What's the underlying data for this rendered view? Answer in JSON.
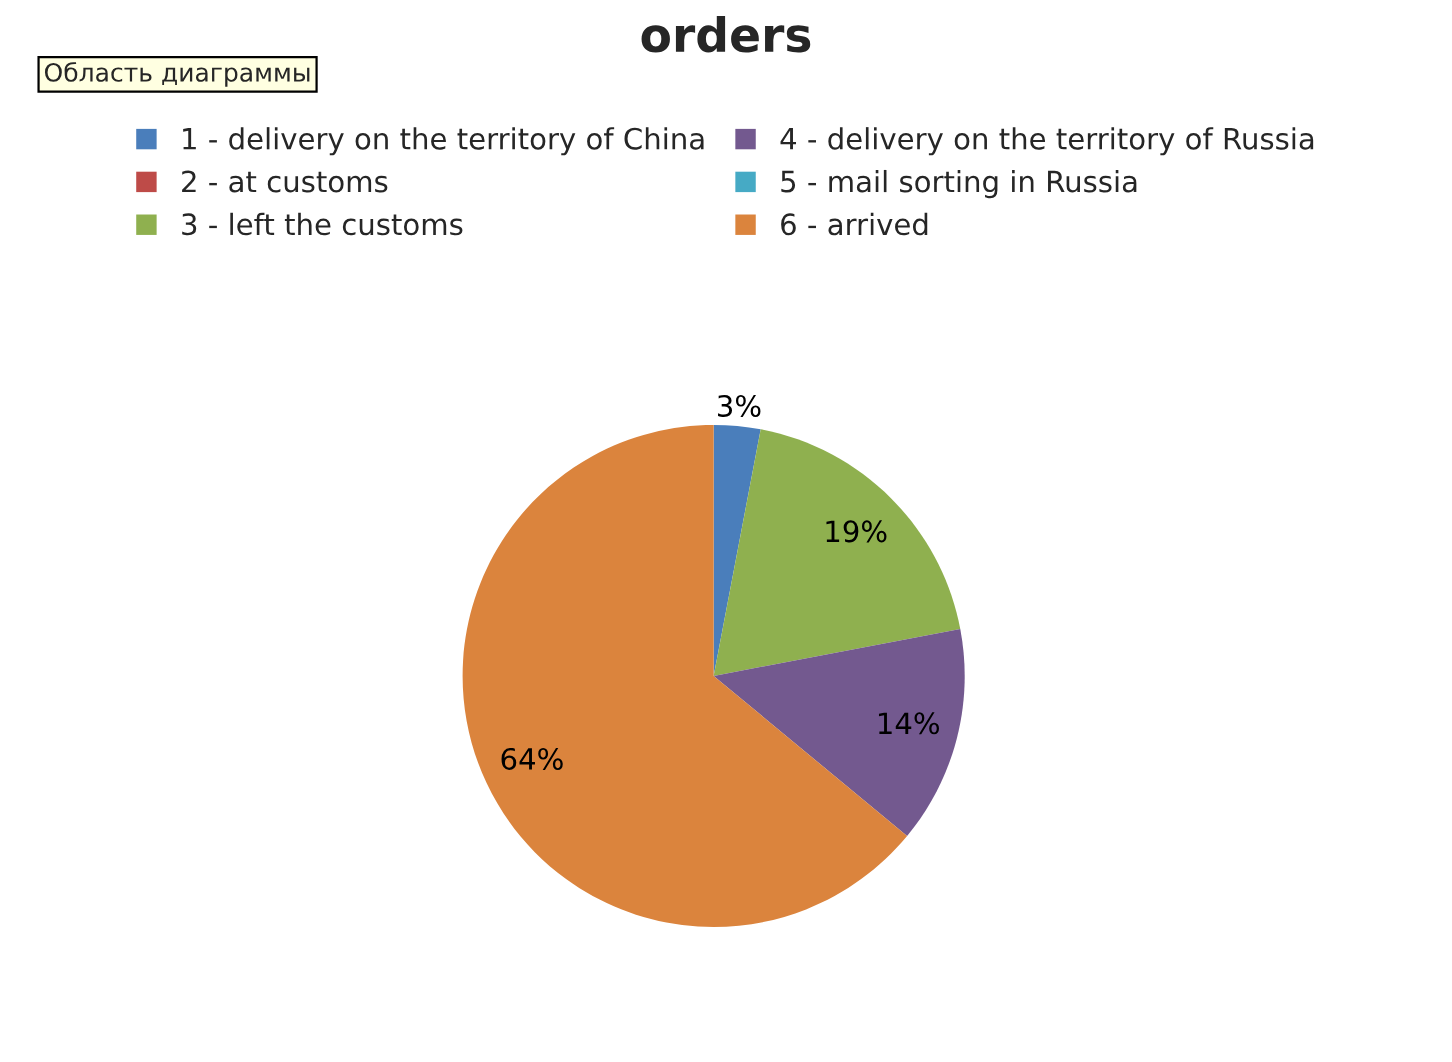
{
  "chart_data": {
    "type": "pie",
    "title": "orders",
    "categories": [
      "1 - delivery on the territory of China",
      "2 - at customs",
      "3 - left the customs",
      "4 - delivery on the territory of Russia",
      "5 - mail sorting in Russia",
      "6 - arrived"
    ],
    "values": [
      3,
      0,
      19,
      14,
      0,
      64
    ],
    "colors": [
      "#4a7ebb",
      "#be4b48",
      "#8fb04f",
      "#73598f",
      "#46aac5",
      "#db843d"
    ],
    "value_labels": [
      "3%",
      null,
      "19%",
      "14%",
      null,
      "64%"
    ],
    "legend": "top",
    "annotations": [
      "Область диаграммы"
    ]
  }
}
